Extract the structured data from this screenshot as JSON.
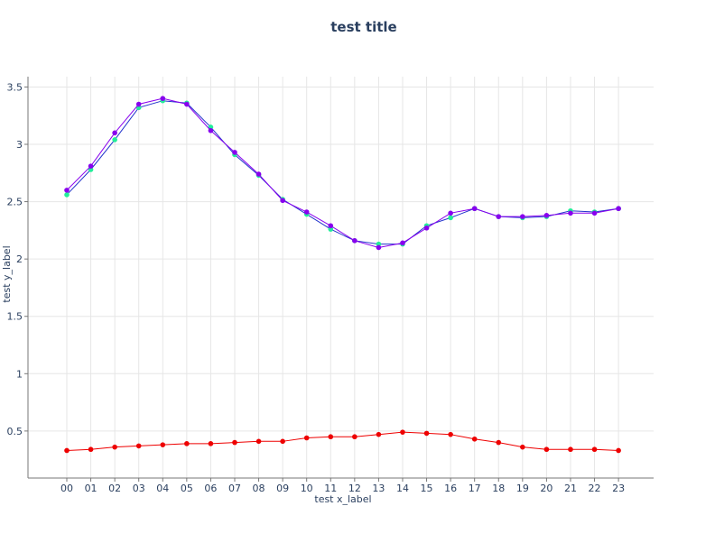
{
  "chart_data": {
    "type": "line",
    "title": "test title",
    "xlabel": "test x_label",
    "ylabel": "test y_label",
    "categories": [
      "00",
      "01",
      "02",
      "03",
      "04",
      "05",
      "06",
      "07",
      "08",
      "09",
      "10",
      "11",
      "12",
      "13",
      "14",
      "15",
      "16",
      "17",
      "18",
      "19",
      "20",
      "21",
      "22",
      "23"
    ],
    "yticks": [
      "0.5",
      "1",
      "1.5",
      "2",
      "2.5",
      "3",
      "3.5"
    ],
    "ytick_values": [
      0.5,
      1,
      1.5,
      2,
      2.5,
      3,
      3.5
    ],
    "ylim": [
      0.09,
      3.59
    ],
    "grid": true,
    "legend": "none",
    "series": [
      {
        "color": "#22ee99",
        "line_color": "#2233cc",
        "values": [
          2.56,
          2.78,
          3.04,
          3.32,
          3.38,
          3.36,
          3.15,
          2.91,
          2.73,
          2.52,
          2.39,
          2.26,
          2.16,
          2.13,
          2.13,
          2.29,
          2.36,
          2.44,
          2.37,
          2.36,
          2.37,
          2.42,
          2.41,
          2.44
        ]
      },
      {
        "color": "#8800ee",
        "line_color": "#8800ee",
        "values": [
          2.6,
          2.81,
          3.1,
          3.35,
          3.4,
          3.35,
          3.12,
          2.93,
          2.74,
          2.51,
          2.41,
          2.29,
          2.16,
          2.1,
          2.14,
          2.27,
          2.4,
          2.44,
          2.37,
          2.37,
          2.38,
          2.4,
          2.4,
          2.44
        ]
      },
      {
        "color": "#ee0000",
        "line_color": "#ee0000",
        "values": [
          0.33,
          0.34,
          0.36,
          0.37,
          0.38,
          0.39,
          0.39,
          0.4,
          0.41,
          0.41,
          0.44,
          0.45,
          0.45,
          0.47,
          0.49,
          0.48,
          0.47,
          0.43,
          0.4,
          0.36,
          0.34,
          0.34,
          0.34,
          0.33
        ]
      }
    ]
  }
}
